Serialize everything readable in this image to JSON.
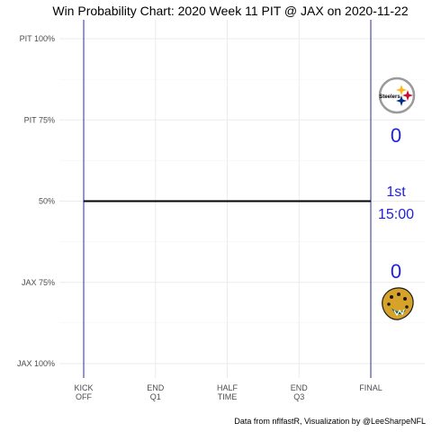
{
  "chart_data": {
    "type": "line",
    "title": "Win Probability Chart: 2020 Week 11 PIT @ JAX on 2020-11-22",
    "caption": "Data from nflfastR, Visualization by @LeeSharpeNFL",
    "y_ticks": [
      "PIT 100%",
      "PIT 75%",
      "50%",
      "JAX 75%",
      "JAX 100%"
    ],
    "y_tick_values": [
      1.0,
      0.75,
      0.5,
      0.25,
      0.0
    ],
    "ylim": [
      0,
      1
    ],
    "x_ticks": [
      {
        "line1": "KICK",
        "line2": "OFF",
        "value": 0
      },
      {
        "line1": "END",
        "line2": "Q1",
        "value": 900
      },
      {
        "line1": "HALF",
        "line2": "TIME",
        "value": 1800
      },
      {
        "line1": "END",
        "line2": "Q3",
        "value": 2700
      },
      {
        "line1": "FINAL",
        "line2": "",
        "value": 3600
      }
    ],
    "xlim": [
      0,
      3600
    ],
    "series": [
      {
        "x": [
          0,
          3600
        ],
        "values": [
          0.5,
          0.5
        ]
      }
    ],
    "grid": true,
    "home_score": "0",
    "away_score": "0",
    "quarter": "1st",
    "clock": "15:00",
    "colors": {
      "line": "#000000",
      "bounds": "#2b2b8f",
      "score": "#1f1fe0",
      "grid": "#ebebeb",
      "pit_gold": "#ffb612",
      "pit_red": "#c8102e",
      "pit_blue": "#003087",
      "jax_teal": "#006778",
      "jax_gold": "#d7a22a"
    },
    "logos": [
      "pit-logo",
      "jax-logo"
    ]
  }
}
